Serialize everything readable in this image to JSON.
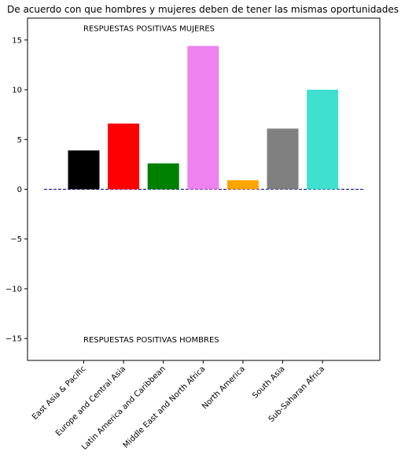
{
  "chart_data": {
    "type": "bar",
    "title": "De acuerdo con que hombres y mujeres deben de tener las mismas oportunidades",
    "xlabel": "",
    "ylabel": "",
    "categories": [
      "East Asia & Pacific",
      "Europe and Central Asia",
      "Latin America and Caribbean",
      "Middle East and North Africa",
      "North America",
      "South Asia",
      "Sub-Saharan Africa"
    ],
    "values": [
      3.9,
      6.6,
      2.6,
      14.4,
      0.9,
      6.1,
      10.0
    ],
    "colors": [
      "#000000",
      "#ff0000",
      "#008000",
      "#ee82ee",
      "#ffa500",
      "#808080",
      "#40e0d0"
    ],
    "ylim": [
      -17.2,
      17.2
    ],
    "yticks": [
      15,
      10,
      5,
      0,
      -5,
      -10,
      -15
    ],
    "ytick_labels": [
      "15",
      "10",
      "5",
      "0",
      "−5",
      "−10",
      "−15"
    ],
    "baseline": {
      "value": 0,
      "style": "dashed",
      "color": "#00008b"
    },
    "annotations": {
      "top": "RESPUESTAS POSITIVAS MUJERES",
      "bottom": "RESPUESTAS POSITIVAS HOMBRES"
    },
    "grid": false,
    "legend": "none"
  }
}
